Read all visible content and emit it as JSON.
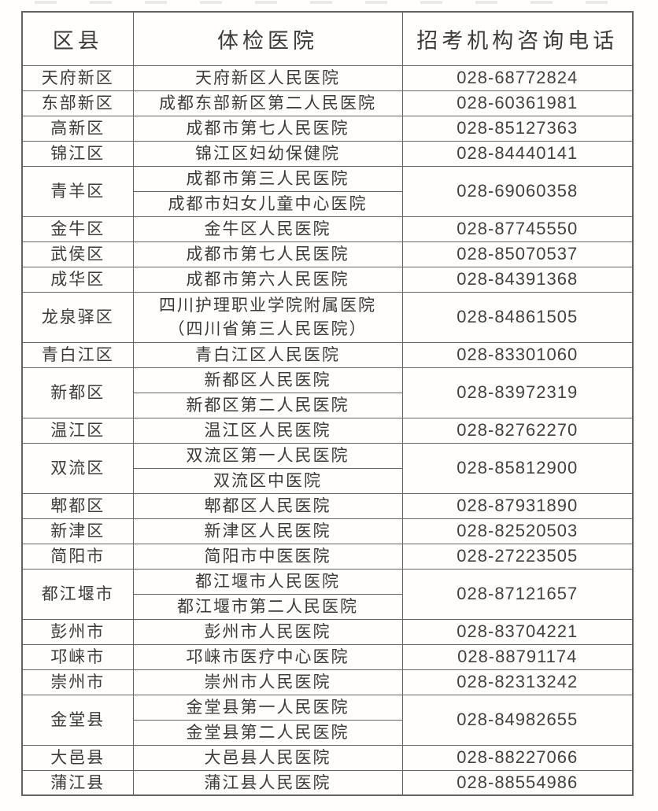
{
  "style": {
    "border_color": "#636363",
    "text_color": "#3b3b3b",
    "background": "#fffefc"
  },
  "table": {
    "columns": [
      {
        "key": "district",
        "label": "区县"
      },
      {
        "key": "hospital",
        "label": "体检医院"
      },
      {
        "key": "phone",
        "label": "招考机构咨询电话"
      }
    ],
    "rows": [
      {
        "district": "天府新区",
        "hospitals": [
          "天府新区人民医院"
        ],
        "phone": "028-68772824"
      },
      {
        "district": "东部新区",
        "hospitals": [
          "成都东部新区第二人民医院"
        ],
        "phone": "028-60361981"
      },
      {
        "district": "高新区",
        "hospitals": [
          "成都市第七人民医院"
        ],
        "phone": "028-85127363"
      },
      {
        "district": "锦江区",
        "hospitals": [
          "锦江区妇幼保健院"
        ],
        "phone": "028-84440141"
      },
      {
        "district": "青羊区",
        "hospitals": [
          "成都市第三人民医院",
          "成都市妇女儿童中心医院"
        ],
        "phone": "028-69060358"
      },
      {
        "district": "金牛区",
        "hospitals": [
          "金牛区人民医院"
        ],
        "phone": "028-87745550"
      },
      {
        "district": "武侯区",
        "hospitals": [
          "成都市第七人民医院"
        ],
        "phone": "028-85070537"
      },
      {
        "district": "成华区",
        "hospitals": [
          "成都市第六人民医院"
        ],
        "phone": "028-84391368"
      },
      {
        "district": "龙泉驿区",
        "hospitals": [
          "四川护理职业学院附属医院\n（四川省第三人民医院）"
        ],
        "phone": "028-84861505"
      },
      {
        "district": "青白江区",
        "hospitals": [
          "青白江区人民医院"
        ],
        "phone": "028-83301060"
      },
      {
        "district": "新都区",
        "hospitals": [
          "新都区人民医院",
          "新都区第二人民医院"
        ],
        "phone": "028-83972319"
      },
      {
        "district": "温江区",
        "hospitals": [
          "温江区人民医院"
        ],
        "phone": "028-82762270"
      },
      {
        "district": "双流区",
        "hospitals": [
          "双流区第一人民医院",
          "双流区中医院"
        ],
        "phone": "028-85812900"
      },
      {
        "district": "郫都区",
        "hospitals": [
          "郫都区人民医院"
        ],
        "phone": "028-87931890"
      },
      {
        "district": "新津区",
        "hospitals": [
          "新津区人民医院"
        ],
        "phone": "028-82520503"
      },
      {
        "district": "简阳市",
        "hospitals": [
          "简阳市中医医院"
        ],
        "phone": "028-27223505"
      },
      {
        "district": "都江堰市",
        "hospitals": [
          "都江堰市人民医院",
          "都江堰市第二人民医院"
        ],
        "phone": "028-87121657"
      },
      {
        "district": "彭州市",
        "hospitals": [
          "彭州市人民医院"
        ],
        "phone": "028-83704221"
      },
      {
        "district": "邛崃市",
        "hospitals": [
          "邛崃市医疗中心医院"
        ],
        "phone": "028-88791174"
      },
      {
        "district": "崇州市",
        "hospitals": [
          "崇州市人民医院"
        ],
        "phone": "028-82313242"
      },
      {
        "district": "金堂县",
        "hospitals": [
          "金堂县第一人民医院",
          "金堂县第二人民医院"
        ],
        "phone": "028-84982655"
      },
      {
        "district": "大邑县",
        "hospitals": [
          "大邑县人民医院"
        ],
        "phone": "028-88227066"
      },
      {
        "district": "蒲江县",
        "hospitals": [
          "蒲江县人民医院"
        ],
        "phone": "028-88554986"
      }
    ]
  }
}
